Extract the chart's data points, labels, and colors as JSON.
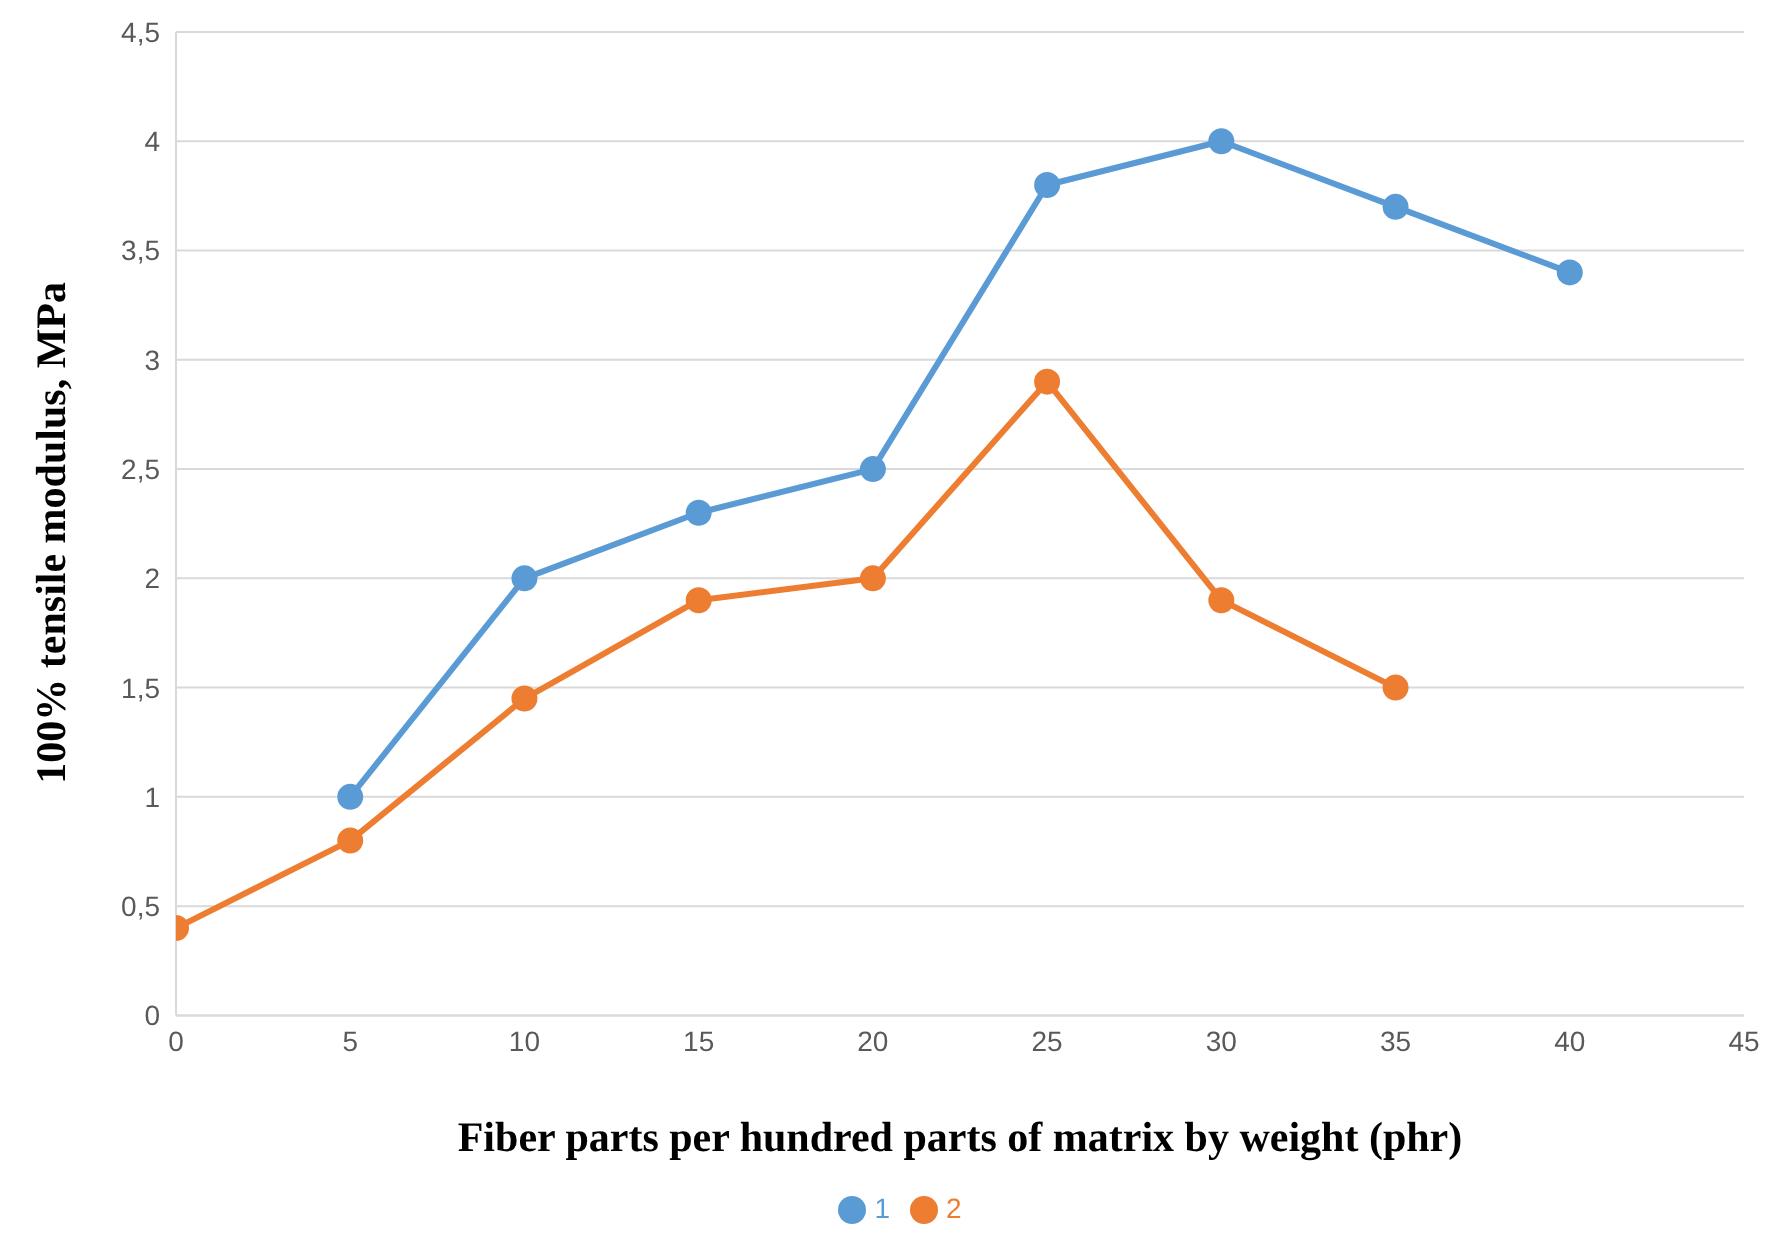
{
  "chart_data": {
    "type": "line",
    "xlabel": "Fiber parts per hundred parts of matrix by weight (phr)",
    "ylabel": "100% tensile modulus, MPa",
    "series": [
      {
        "name": "1",
        "color": "#5b9bd5",
        "x": [
          5,
          10,
          15,
          20,
          25,
          30,
          35,
          40
        ],
        "values": [
          1,
          2,
          2.3,
          2.5,
          3.8,
          4,
          3.7,
          3.4
        ]
      },
      {
        "name": "2",
        "color": "#ed7d31",
        "x": [
          0,
          5,
          10,
          15,
          20,
          25,
          30,
          35
        ],
        "values": [
          0.4,
          0.8,
          1.45,
          1.9,
          2,
          2.9,
          1.9,
          1.5
        ]
      }
    ],
    "xlim": [
      0,
      45
    ],
    "xticks": [
      0,
      5,
      10,
      15,
      20,
      25,
      30,
      35,
      40,
      45
    ],
    "ylim": [
      0,
      4.5
    ],
    "yticks": [
      0,
      {
        "value": 0.5,
        "label": "0,5"
      },
      1,
      {
        "value": 1.5,
        "label": "1,5"
      },
      2,
      {
        "value": 2.5,
        "label": "2,5"
      },
      3,
      {
        "value": 3.5,
        "label": "3,5"
      },
      4,
      {
        "value": 4.5,
        "label": "4,5"
      }
    ],
    "grid": "y",
    "legend": "bottom",
    "marker": "circle",
    "line_style": "solid"
  }
}
